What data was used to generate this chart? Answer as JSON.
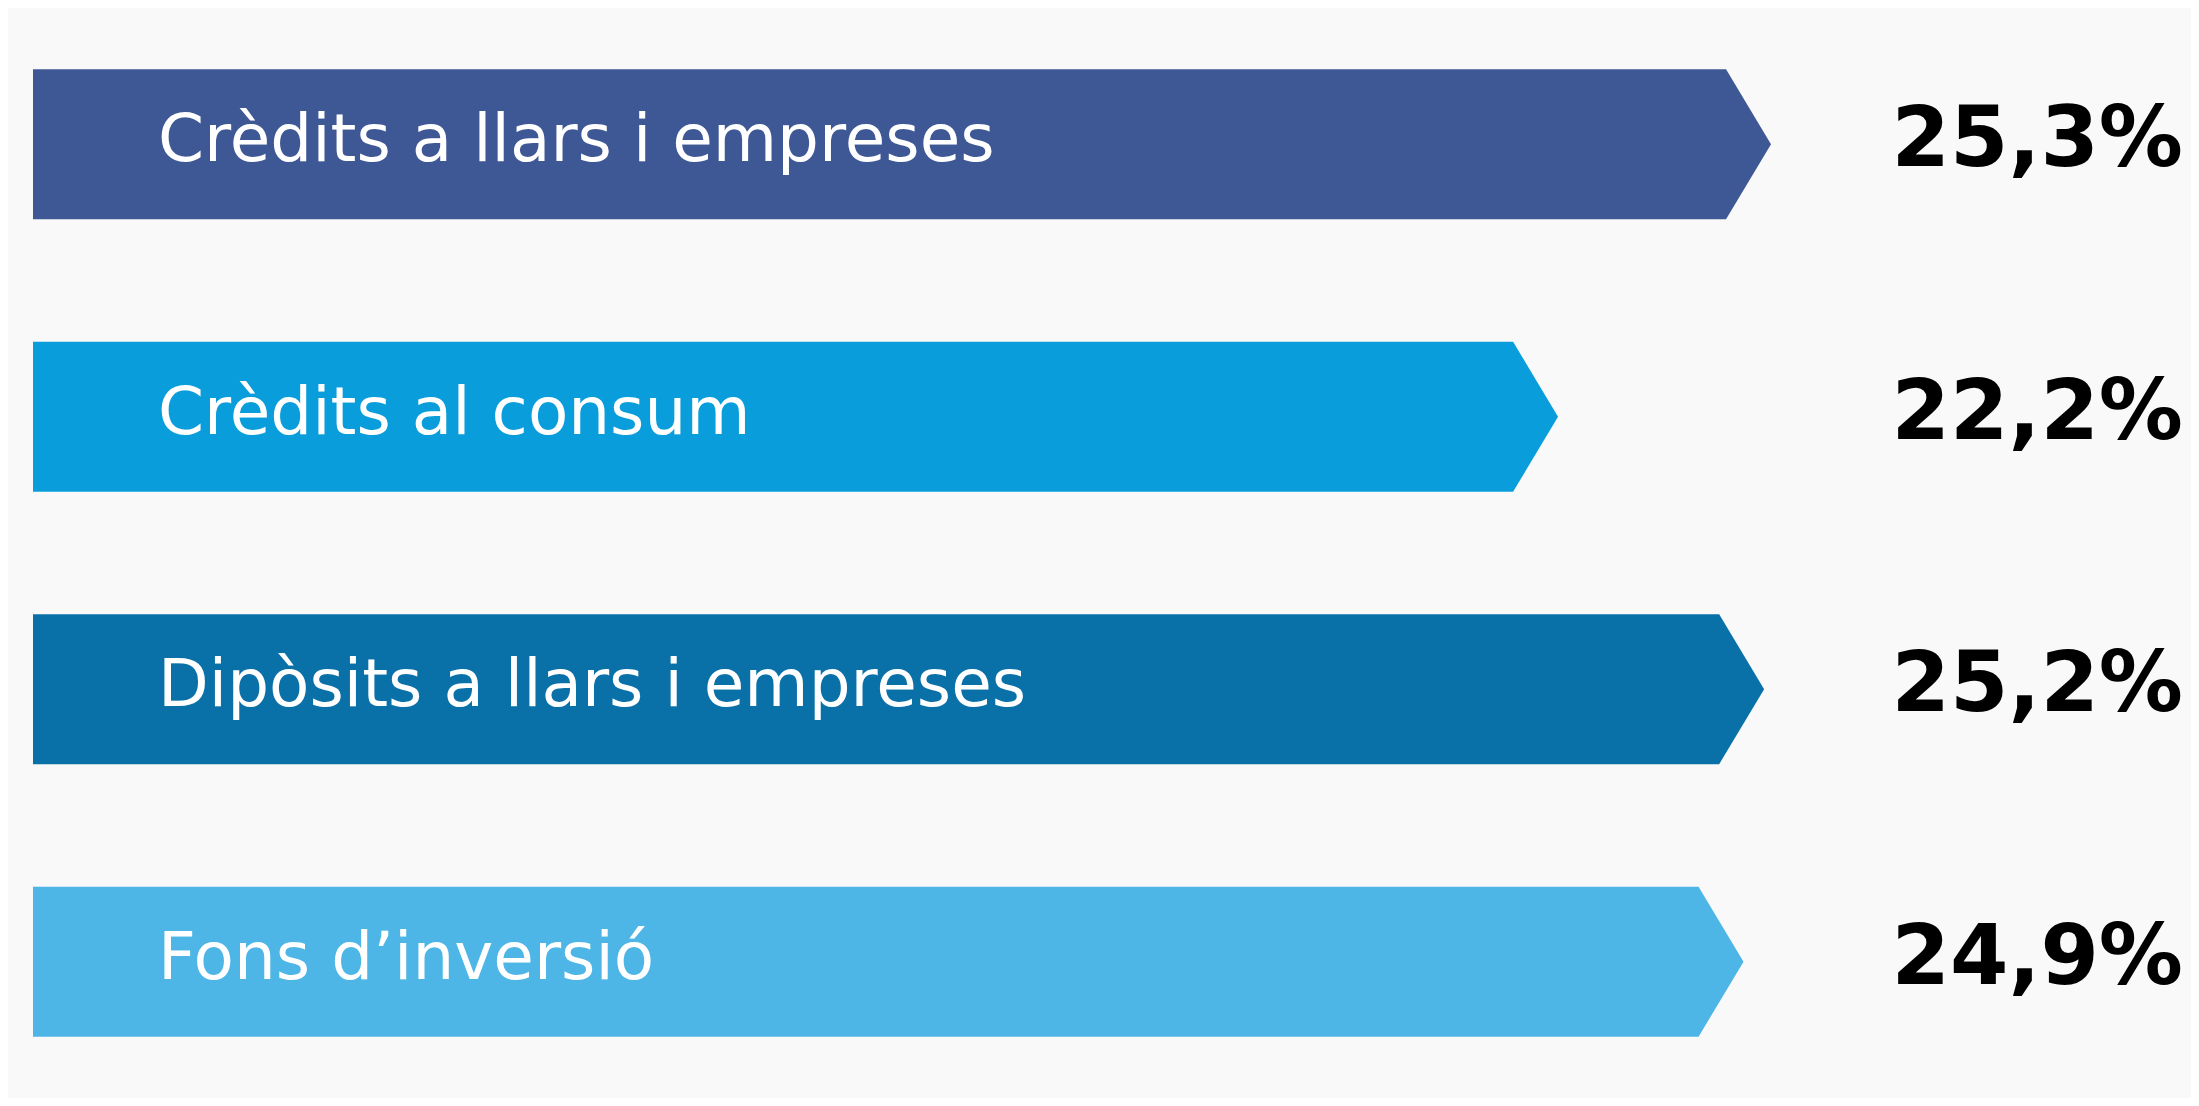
{
  "chart_data": {
    "type": "bar",
    "orientation": "horizontal",
    "categories": [
      "Crèdits a llars i empreses",
      "Crèdits al consum",
      "Dipòsits a llars i empreses",
      "Fons d’inversió"
    ],
    "values": [
      25.3,
      22.2,
      25.2,
      24.9
    ],
    "colors": [
      "#3e5795",
      "#099edb",
      "#0a71a8",
      "#4db6e6"
    ],
    "value_labels": [
      "25,3%",
      "22,2%",
      "25,2%",
      "24,9%"
    ]
  }
}
